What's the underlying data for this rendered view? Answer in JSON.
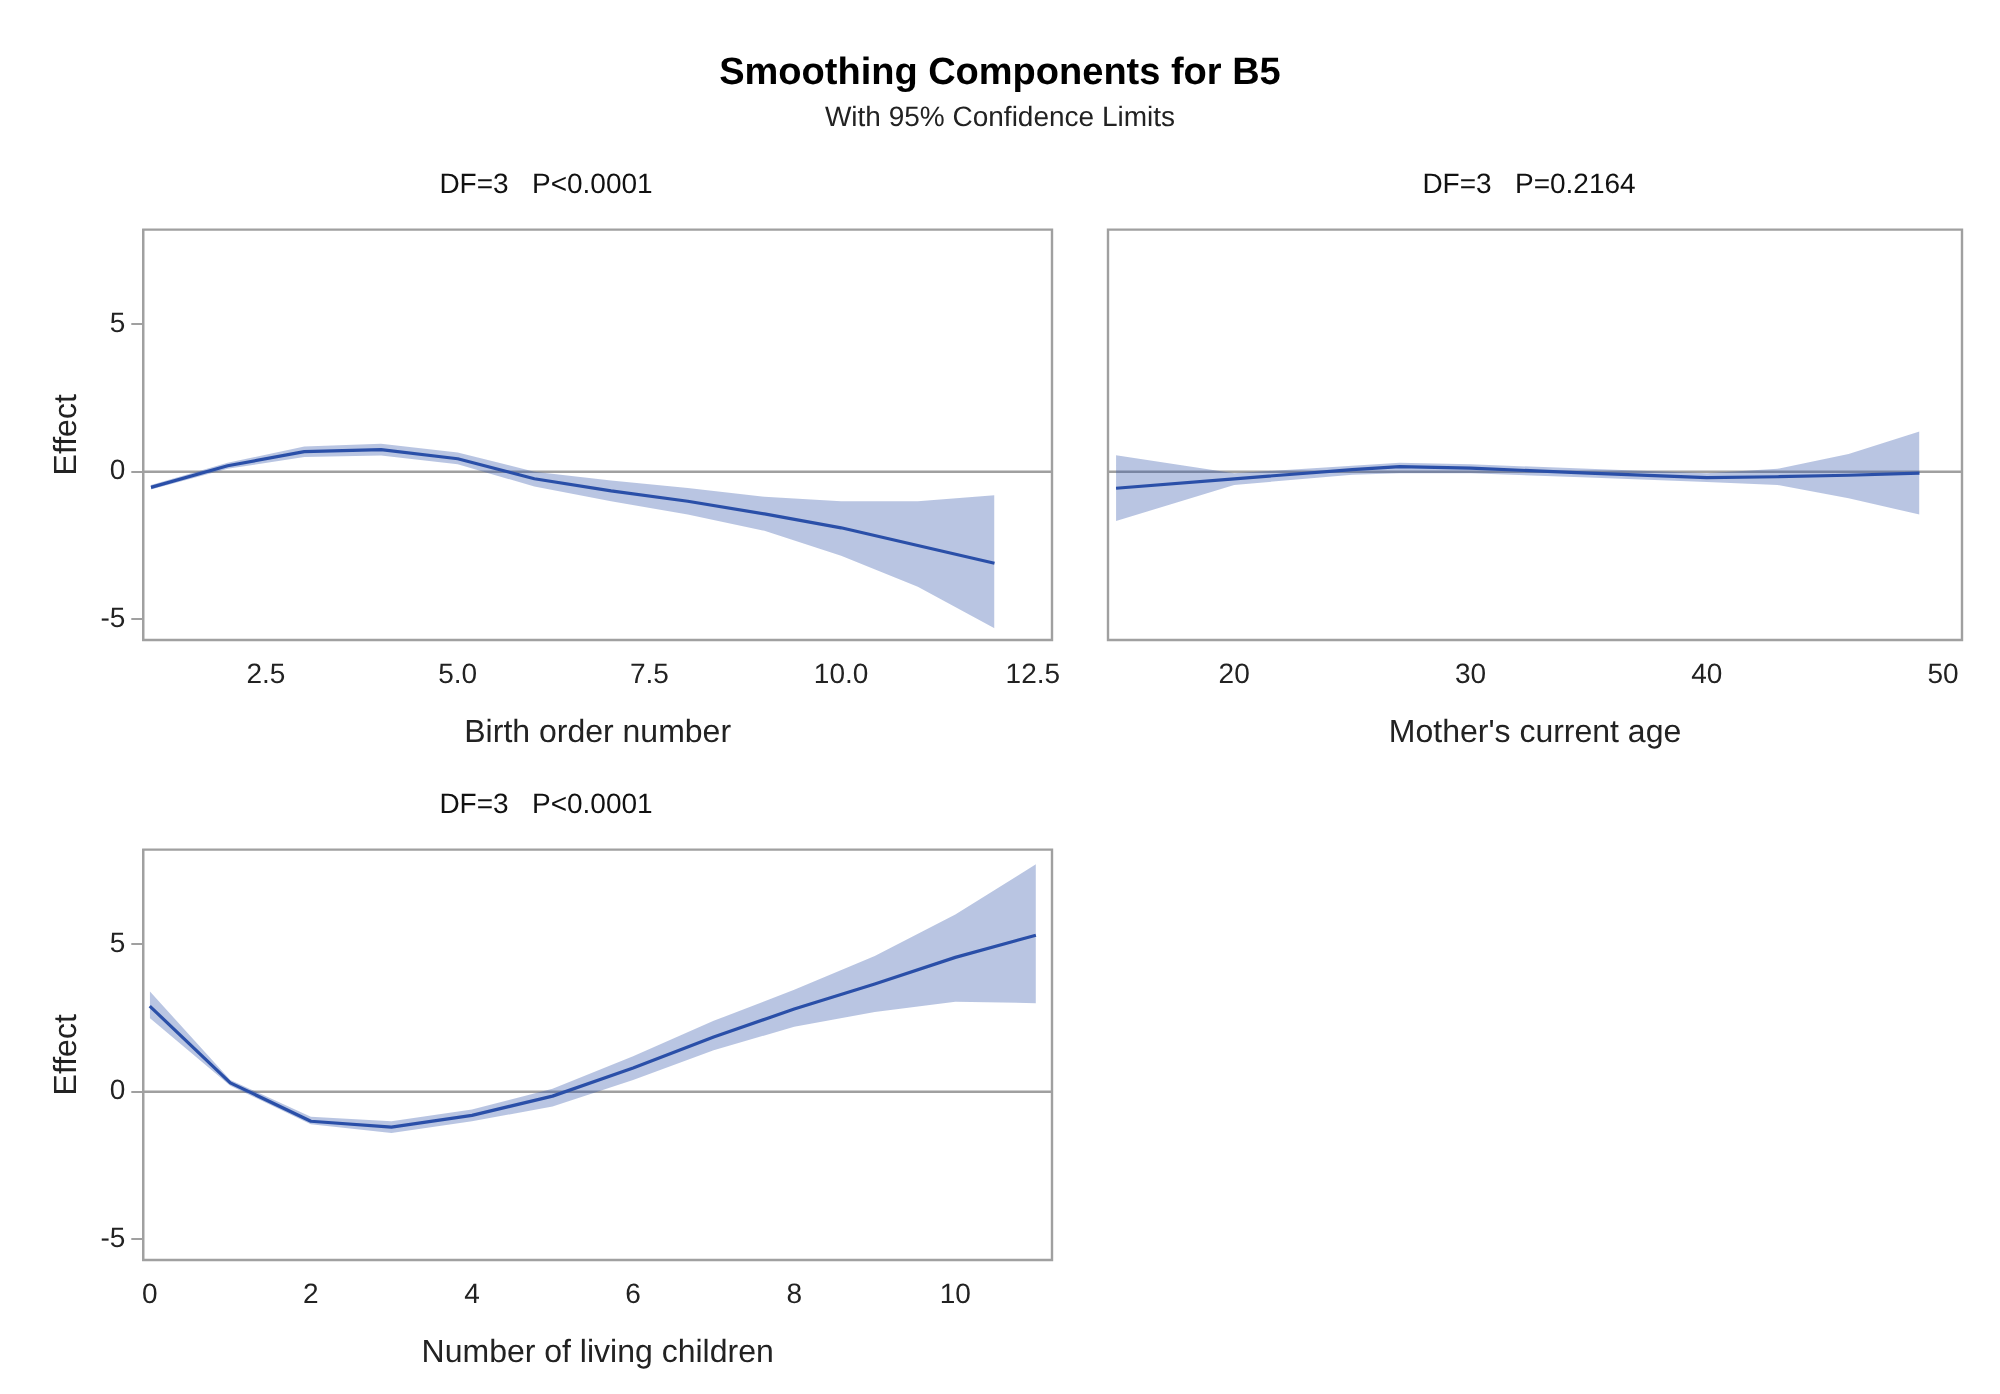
{
  "chart_data": [
    {
      "type": "line",
      "title": "Smoothing Components for B5",
      "subtitle": "With 95% Confidence Limits",
      "annotations": [
        "DF=3   P<0.0001"
      ],
      "xlabel": "Birth order number",
      "ylabel": "Effect",
      "x": [
        1,
        2,
        3,
        4,
        5,
        6,
        7,
        8,
        9,
        10,
        11,
        12
      ],
      "series": [
        {
          "color": "#2a4fa8",
          "values": [
            -0.53,
            0.2,
            0.68,
            0.75,
            0.44,
            -0.24,
            -0.65,
            -1.0,
            -1.43,
            -1.9,
            -2.5,
            -3.1
          ],
          "lower": [
            -0.6,
            0.1,
            0.5,
            0.55,
            0.25,
            -0.5,
            -1.0,
            -1.45,
            -2.0,
            -2.85,
            -3.9,
            -5.3
          ],
          "upper": [
            -0.45,
            0.3,
            0.85,
            0.95,
            0.65,
            0.0,
            -0.3,
            -0.55,
            -0.85,
            -1.0,
            -1.0,
            -0.8
          ]
        }
      ],
      "xlim": [
        0.9,
        12.75
      ],
      "xticks": [
        2.5,
        {
          "value": 5,
          "label": "5.0"
        },
        7.5,
        {
          "value": 10,
          "label": "10.0"
        },
        12.5
      ],
      "ylim": [
        -5.7,
        8.2
      ],
      "yticks": [
        -5,
        0,
        5
      ],
      "grid": false,
      "legend": false,
      "ref_lines": [
        {
          "axis": "y",
          "value": 0,
          "color": "#a0a0a0"
        }
      ]
    },
    {
      "type": "line",
      "title": "DF=3   P=0.2164",
      "xlabel": "Mother's current age",
      "x": [
        15,
        20,
        25,
        27,
        30,
        35,
        40,
        43,
        46,
        49
      ],
      "series": [
        {
          "color": "#2a4fa8",
          "values": [
            -0.56,
            -0.24,
            0.07,
            0.17,
            0.12,
            -0.05,
            -0.2,
            -0.17,
            -0.12,
            -0.05
          ],
          "lower": [
            -1.67,
            -0.45,
            -0.1,
            -0.05,
            -0.05,
            -0.2,
            -0.35,
            -0.45,
            -0.9,
            -1.45
          ],
          "upper": [
            0.56,
            -0.05,
            0.2,
            0.3,
            0.25,
            0.1,
            -0.05,
            0.1,
            0.6,
            1.36
          ]
        }
      ],
      "xlim": [
        14.66,
        50.8
      ],
      "xticks": [
        20,
        30,
        40,
        50
      ],
      "ylim": [
        -5.7,
        8.2
      ],
      "tick_labels": "x",
      "grid": false,
      "legend": false,
      "ref_lines": [
        {
          "axis": "y",
          "value": 0,
          "color": "#a0a0a0"
        }
      ]
    },
    {
      "type": "line",
      "title": "DF=3   P<0.0001",
      "xlabel": "Number of living children",
      "ylabel": "Effect",
      "x": [
        0,
        1,
        2,
        3,
        4,
        5,
        6,
        7,
        8,
        9,
        10,
        11
      ],
      "series": [
        {
          "color": "#2a4fa8",
          "values": [
            2.9,
            0.3,
            -1.0,
            -1.2,
            -0.8,
            -0.15,
            0.8,
            1.85,
            2.8,
            3.65,
            4.55,
            5.3
          ],
          "lower": [
            2.5,
            0.2,
            -1.1,
            -1.4,
            -1.0,
            -0.5,
            0.4,
            1.4,
            2.2,
            2.7,
            3.05,
            3.0
          ],
          "upper": [
            3.4,
            0.4,
            -0.85,
            -1.0,
            -0.6,
            0.1,
            1.2,
            2.4,
            3.45,
            4.6,
            6.0,
            7.7
          ]
        }
      ],
      "xlim": [
        -0.08,
        11.2
      ],
      "xticks": [
        0,
        2,
        4,
        6,
        8,
        10
      ],
      "ylim": [
        -5.7,
        8.2
      ],
      "yticks": [
        -5,
        0,
        5
      ],
      "grid": false,
      "legend": false,
      "ref_lines": [
        {
          "axis": "y",
          "value": 0,
          "color": "#a0a0a0"
        }
      ]
    }
  ]
}
